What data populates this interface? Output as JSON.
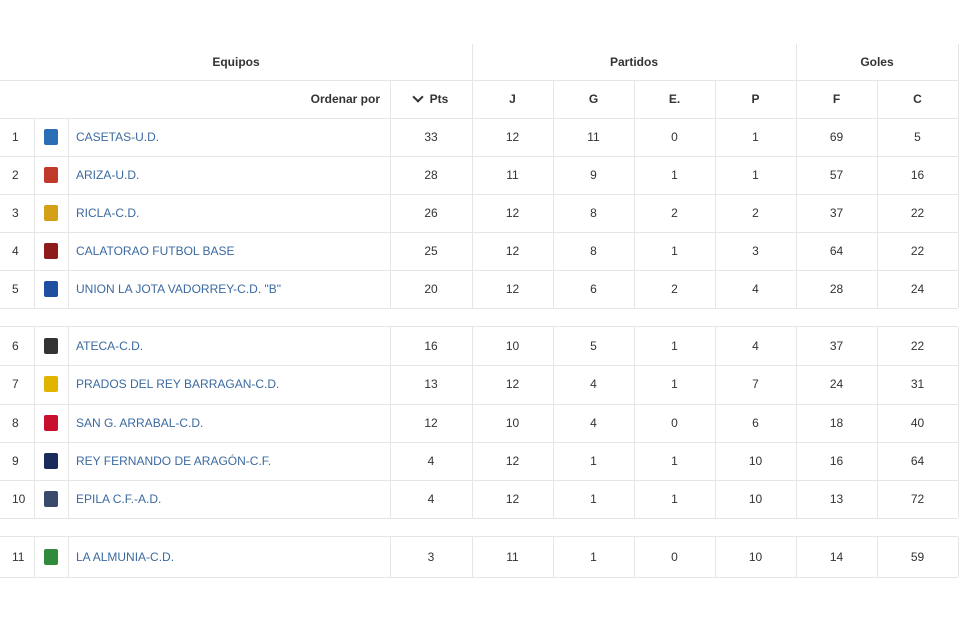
{
  "header": {
    "equipos": "Equipos",
    "partidos": "Partidos",
    "goles": "Goles",
    "ordenar_por": "Ordenar por",
    "pts": "Pts",
    "j": "J",
    "g": "G",
    "e": "E.",
    "p": "P",
    "f": "F",
    "c": "C"
  },
  "rows": [
    {
      "pos": "1",
      "name": "CASETAS-U.D.",
      "pts": "33",
      "j": "12",
      "g": "11",
      "e": "0",
      "p": "1",
      "f": "69",
      "c": "5",
      "crest": "#2a6fb5"
    },
    {
      "pos": "2",
      "name": "ARIZA-U.D.",
      "pts": "28",
      "j": "11",
      "g": "9",
      "e": "1",
      "p": "1",
      "f": "57",
      "c": "16",
      "crest": "#c0392b"
    },
    {
      "pos": "3",
      "name": "RICLA-C.D.",
      "pts": "26",
      "j": "12",
      "g": "8",
      "e": "2",
      "p": "2",
      "f": "37",
      "c": "22",
      "crest": "#d4a017"
    },
    {
      "pos": "4",
      "name": "CALATORAO FUTBOL BASE",
      "pts": "25",
      "j": "12",
      "g": "8",
      "e": "1",
      "p": "3",
      "f": "64",
      "c": "22",
      "crest": "#8e1b1b"
    },
    {
      "pos": "5",
      "name": "UNION LA JOTA VADORREY-C.D. \"B\"",
      "pts": "20",
      "j": "12",
      "g": "6",
      "e": "2",
      "p": "4",
      "f": "28",
      "c": "24",
      "crest": "#1f4fa0"
    },
    {
      "pos": "6",
      "name": "ATECA-C.D.",
      "pts": "16",
      "j": "10",
      "g": "5",
      "e": "1",
      "p": "4",
      "f": "37",
      "c": "22",
      "crest": "#333333"
    },
    {
      "pos": "7",
      "name": "PRADOS DEL REY BARRAGAN-C.D.",
      "pts": "13",
      "j": "12",
      "g": "4",
      "e": "1",
      "p": "7",
      "f": "24",
      "c": "31",
      "crest": "#e0b400"
    },
    {
      "pos": "8",
      "name": "SAN G. ARRABAL-C.D.",
      "pts": "12",
      "j": "10",
      "g": "4",
      "e": "0",
      "p": "6",
      "f": "18",
      "c": "40",
      "crest": "#c8102e"
    },
    {
      "pos": "9",
      "name": "REY FERNANDO DE ARAGÓN-C.F.",
      "pts": "4",
      "j": "12",
      "g": "1",
      "e": "1",
      "p": "10",
      "f": "16",
      "c": "64",
      "crest": "#1a2a5a"
    },
    {
      "pos": "10",
      "name": "EPILA C.F.-A.D.",
      "pts": "4",
      "j": "12",
      "g": "1",
      "e": "1",
      "p": "10",
      "f": "13",
      "c": "72",
      "crest": "#3a4a6a"
    },
    {
      "pos": "11",
      "name": "LA ALMUNIA-C.D.",
      "pts": "3",
      "j": "11",
      "g": "1",
      "e": "0",
      "p": "10",
      "f": "14",
      "c": "59",
      "crest": "#2e8b3a"
    }
  ]
}
